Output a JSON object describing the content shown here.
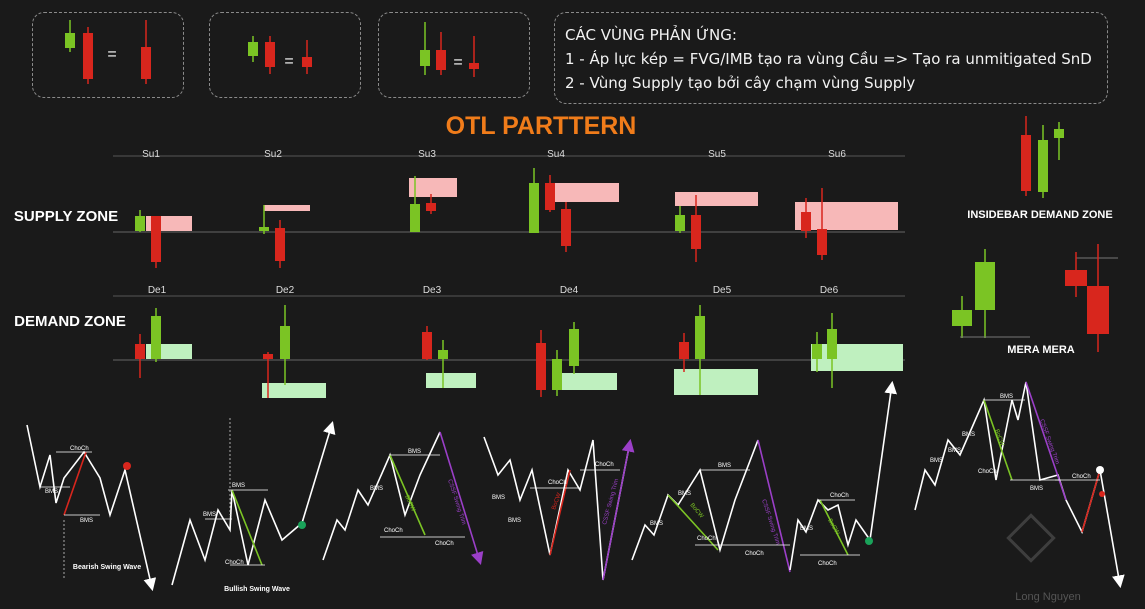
{
  "top_boxes": {
    "equals": "="
  },
  "legend": {
    "title": "CÁC VÙNG PHẢN ỨNG:",
    "line1": "1 - Áp lực kép = FVG/IMB tạo ra vùng Cầu => Tạo ra unmitigated SnD",
    "line2": "2 - Vùng Supply tạo bởi cây chạm vùng Supply"
  },
  "main_title": "OTL PARTTERN",
  "supply": {
    "label": "SUPPLY ZONE",
    "columns": [
      "Su1",
      "Su2",
      "Su3",
      "Su4",
      "Su5",
      "Su6"
    ]
  },
  "demand": {
    "label": "DEMAND ZONE",
    "columns": [
      "De1",
      "De2",
      "De3",
      "De4",
      "De5",
      "De6"
    ]
  },
  "right": {
    "insidebar_label": "INSIDEBAR DEMAND ZONE",
    "mera_label": "MERA MERA"
  },
  "waves": {
    "choch": "ChoCh",
    "bms": "BMS",
    "bocw": "BoCW",
    "cssf": "CSSF Swing Trim",
    "bearish_label": "Bearish Swing Wave",
    "bullish_label": "Bullish Swing Wave"
  },
  "watermark": "Long Nguyen",
  "colors": {
    "green": "#7bc424",
    "red": "#d8261d",
    "supply_zone": "#f7b8b8",
    "demand_zone": "#bff0bf",
    "title_orange": "#f07c1a",
    "purple": "#9b3fc8"
  }
}
